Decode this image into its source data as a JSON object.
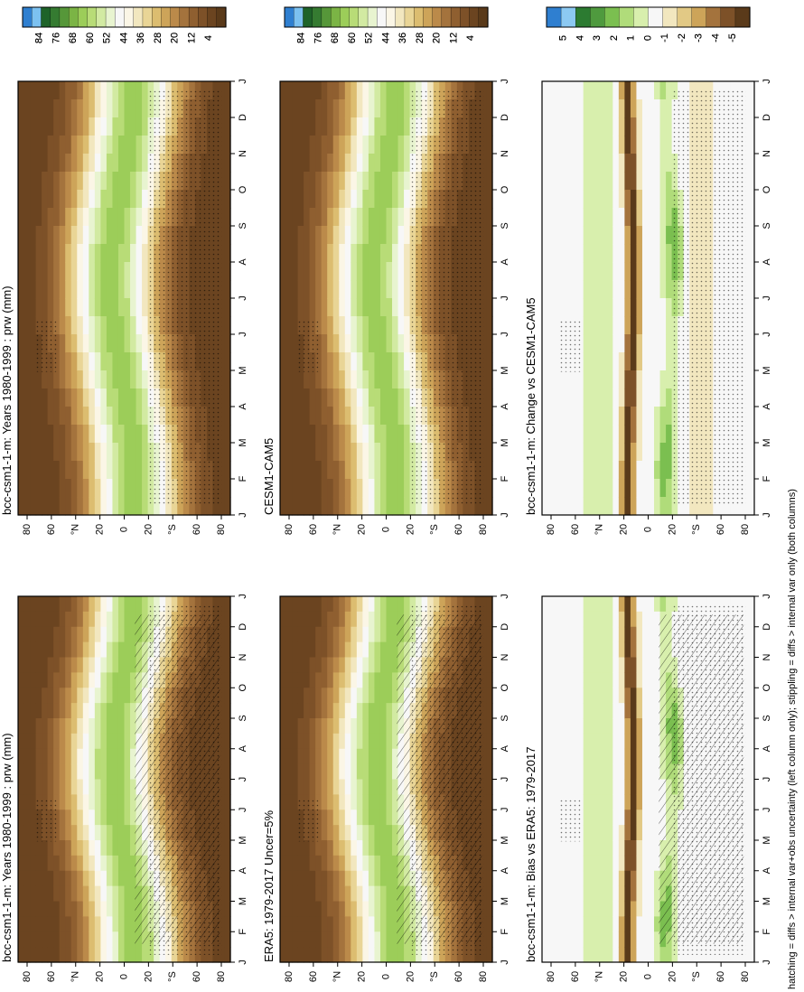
{
  "figure": {
    "footnote": "hatching = diffs > internal var+obs uncertainty (left column only); stippling = diffs > internal var only (both columns)"
  },
  "palettes": {
    "abs": [
      "#5a3a1a",
      "#6b4420",
      "#7d5128",
      "#8f5f30",
      "#a4733d",
      "#bb8a4a",
      "#cda459",
      "#dcbd70",
      "#e9d596",
      "#f2e7bf",
      "#fbf6e6",
      "#f7f7f7",
      "#e8f4d0",
      "#d2eaa2",
      "#b8dc77",
      "#9ccd59",
      "#7bb445",
      "#569739",
      "#357b31",
      "#1e6329",
      "#7cc1f0",
      "#2f7fd0"
    ],
    "diff": [
      "#5a3a1a",
      "#7d5128",
      "#a4733d",
      "#cda459",
      "#e2c985",
      "#f2e7bf",
      "#f7f7f7",
      "#d8efad",
      "#b0dc7a",
      "#7bbf50",
      "#4f9a3e",
      "#2c7b31",
      "#8cc9f2",
      "#2f7fd0"
    ]
  },
  "chart_data": [
    {
      "type": "heatmap",
      "panel": "top-left",
      "title": "bcc-csm1-1-m: Years 1980-1999 : prw (mm)",
      "xlabel": "",
      "ylabel": "",
      "x_ticks": [
        "J",
        "F",
        "M",
        "A",
        "M",
        "J",
        "J",
        "A",
        "S",
        "O",
        "N",
        "D",
        "J"
      ],
      "y_ticks": [
        "80",
        "60",
        "°N",
        "20",
        "0",
        "20",
        "°S",
        "60",
        "80"
      ],
      "ylim": [
        -90,
        90
      ],
      "colorbar": {
        "ticks": [
          "84",
          "76",
          "68",
          "60",
          "52",
          "44",
          "36",
          "28",
          "20",
          "12",
          "4"
        ],
        "range": [
          0,
          88
        ]
      },
      "field": "absolute",
      "hatching": true,
      "stippling": true
    },
    {
      "type": "heatmap",
      "panel": "top-right",
      "title": "bcc-csm1-1-m: Years 1980-1999 : prw (mm)",
      "xlabel": "",
      "ylabel": "",
      "x_ticks": [
        "J",
        "F",
        "M",
        "A",
        "M",
        "J",
        "J",
        "A",
        "S",
        "O",
        "N",
        "D",
        "J"
      ],
      "y_ticks": [
        "80",
        "60",
        "°N",
        "20",
        "0",
        "20",
        "°S",
        "60",
        "80"
      ],
      "ylim": [
        -90,
        90
      ],
      "colorbar": {
        "ticks": [
          "84",
          "76",
          "68",
          "60",
          "52",
          "44",
          "36",
          "28",
          "20",
          "12",
          "4"
        ],
        "range": [
          0,
          88
        ]
      },
      "field": "absolute",
      "hatching": false,
      "stippling": true
    },
    {
      "type": "heatmap",
      "panel": "middle-left",
      "title": "ERA5: 1979-2017 Uncer=5%",
      "xlabel": "",
      "ylabel": "",
      "x_ticks": [
        "J",
        "F",
        "M",
        "A",
        "M",
        "J",
        "J",
        "A",
        "S",
        "O",
        "N",
        "D",
        "J"
      ],
      "y_ticks": [
        "80",
        "60",
        "°N",
        "20",
        "0",
        "20",
        "°S",
        "60",
        "80"
      ],
      "ylim": [
        -90,
        90
      ],
      "colorbar": {
        "ticks": [
          "84",
          "76",
          "68",
          "60",
          "52",
          "44",
          "36",
          "28",
          "20",
          "12",
          "4"
        ],
        "range": [
          0,
          88
        ]
      },
      "field": "absolute",
      "hatching": true,
      "stippling": true
    },
    {
      "type": "heatmap",
      "panel": "middle-right",
      "title": "CESM1-CAM5",
      "xlabel": "",
      "ylabel": "",
      "x_ticks": [
        "J",
        "F",
        "M",
        "A",
        "M",
        "J",
        "J",
        "A",
        "S",
        "O",
        "N",
        "D",
        "J"
      ],
      "y_ticks": [
        "80",
        "60",
        "°N",
        "20",
        "0",
        "20",
        "°S",
        "60",
        "80"
      ],
      "ylim": [
        -90,
        90
      ],
      "colorbar": {
        "ticks": [
          "84",
          "76",
          "68",
          "60",
          "52",
          "44",
          "36",
          "28",
          "20",
          "12",
          "4"
        ],
        "range": [
          0,
          88
        ]
      },
      "field": "absolute",
      "hatching": false,
      "stippling": true
    },
    {
      "type": "heatmap",
      "panel": "bottom-left",
      "title": "bcc-csm1-1-m: Bias vs ERA5: 1979-2017",
      "xlabel": "",
      "ylabel": "",
      "x_ticks": [
        "J",
        "F",
        "M",
        "A",
        "M",
        "J",
        "J",
        "A",
        "S",
        "O",
        "N",
        "D",
        "J"
      ],
      "y_ticks": [
        "80",
        "60",
        "°N",
        "20",
        "0",
        "20",
        "°S",
        "60",
        "80"
      ],
      "ylim": [
        -90,
        90
      ],
      "colorbar": {
        "ticks": [
          "5",
          "4",
          "3",
          "2",
          "1",
          "0",
          "-1",
          "-2",
          "-3",
          "-4",
          "-5"
        ],
        "range": [
          -5.5,
          5.5
        ]
      },
      "field": "difference",
      "hatching": true,
      "stippling": true
    },
    {
      "type": "heatmap",
      "panel": "bottom-right",
      "title": "bcc-csm1-1-m: Change vs CESM1-CAM5",
      "xlabel": "",
      "ylabel": "",
      "x_ticks": [
        "J",
        "F",
        "M",
        "A",
        "M",
        "J",
        "J",
        "A",
        "S",
        "O",
        "N",
        "D",
        "J"
      ],
      "y_ticks": [
        "80",
        "60",
        "°N",
        "20",
        "0",
        "20",
        "°S",
        "60",
        "80"
      ],
      "ylim": [
        -90,
        90
      ],
      "colorbar": {
        "ticks": [
          "5",
          "4",
          "3",
          "2",
          "1",
          "0",
          "-1",
          "-2",
          "-3",
          "-4",
          "-5"
        ],
        "range": [
          -5.5,
          5.5
        ]
      },
      "field": "difference",
      "hatching": false,
      "stippling": true
    }
  ]
}
